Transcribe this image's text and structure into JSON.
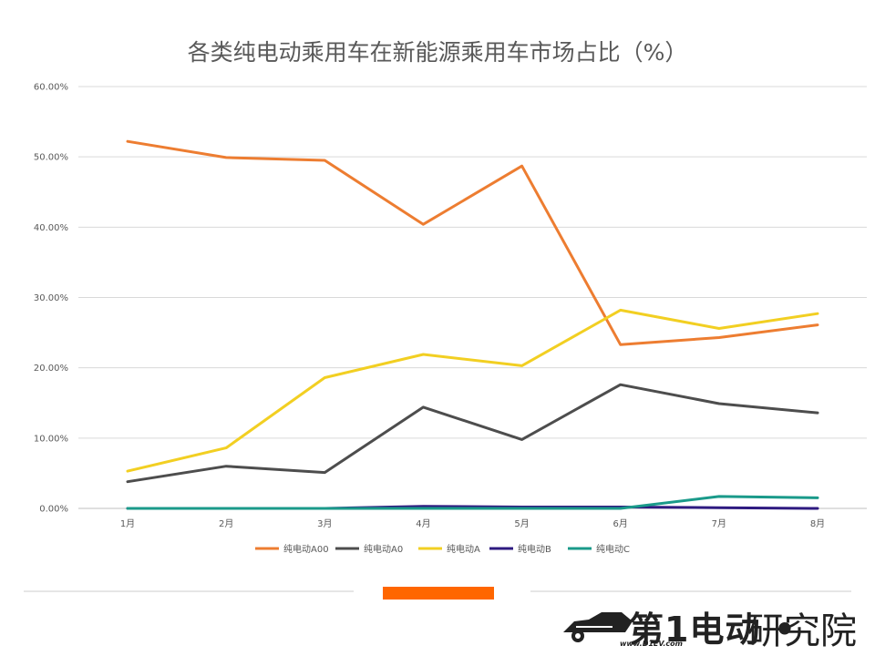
{
  "chart_data": {
    "type": "line",
    "title": "各类纯电动乘用车在新能源乘用车市场占比（%）",
    "categories": [
      "1月",
      "2月",
      "3月",
      "4月",
      "5月",
      "6月",
      "7月",
      "8月"
    ],
    "ylim": [
      0,
      60
    ],
    "yticks": [
      "0.00%",
      "10.00%",
      "20.00%",
      "30.00%",
      "40.00%",
      "50.00%",
      "60.00%"
    ],
    "grid": true,
    "legend_position": "bottom",
    "series": [
      {
        "name": "纯电动A00",
        "color": "#ed7d31",
        "values": [
          52.2,
          49.9,
          49.5,
          40.4,
          48.7,
          23.3,
          24.3,
          26.1
        ]
      },
      {
        "name": "纯电动A0",
        "color": "#4d4d4d",
        "values": [
          3.8,
          6.0,
          5.1,
          14.4,
          9.8,
          17.6,
          14.9,
          13.6
        ]
      },
      {
        "name": "纯电动A",
        "color": "#f2cf22",
        "values": [
          5.3,
          8.6,
          18.6,
          21.9,
          20.3,
          28.2,
          25.6,
          27.7
        ]
      },
      {
        "name": "纯电动B",
        "color": "#2e1a80",
        "values": [
          0.0,
          0.0,
          0.0,
          0.3,
          0.2,
          0.2,
          0.1,
          0.0
        ]
      },
      {
        "name": "纯电动C",
        "color": "#1a9a8a",
        "values": [
          0.0,
          0.0,
          0.0,
          0.0,
          0.0,
          0.0,
          1.7,
          1.5
        ]
      }
    ]
  },
  "brand": {
    "name": "第1电动",
    "dot": "•",
    "sub": "研究院",
    "url": "www.D1EV.com"
  }
}
